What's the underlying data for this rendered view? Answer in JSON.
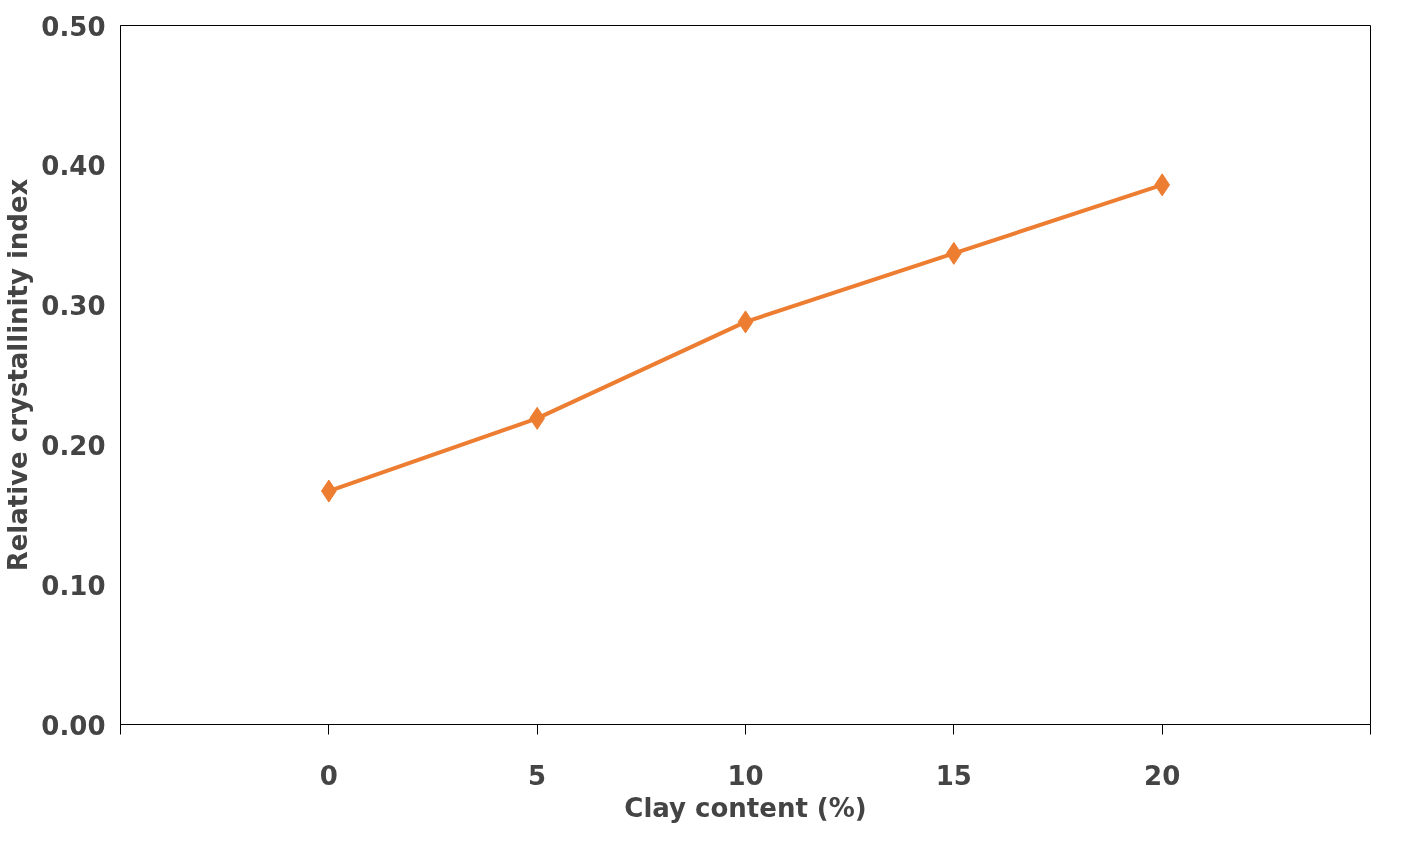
{
  "chart_data": {
    "type": "line",
    "xlabel": "Clay content (%)",
    "ylabel": "Relative crystallinity index",
    "categories": [
      "0",
      "5",
      "10",
      "15",
      "20"
    ],
    "series": [
      {
        "color": "#ed7d31",
        "values": [
          0.167,
          0.219,
          0.288,
          0.337,
          0.386
        ]
      }
    ],
    "ylim": [
      0,
      0.5
    ],
    "yticks": [
      {
        "value": 0,
        "label": "0.00"
      },
      {
        "value": 0.1,
        "label": "0.10"
      },
      {
        "value": 0.2,
        "label": "0.20"
      },
      {
        "value": 0.3,
        "label": "0.30"
      },
      {
        "value": 0.4,
        "label": "0.40"
      },
      {
        "value": 0.5,
        "label": "0.50"
      }
    ],
    "grid": false,
    "marker": "diamond",
    "line_style": "solid"
  }
}
